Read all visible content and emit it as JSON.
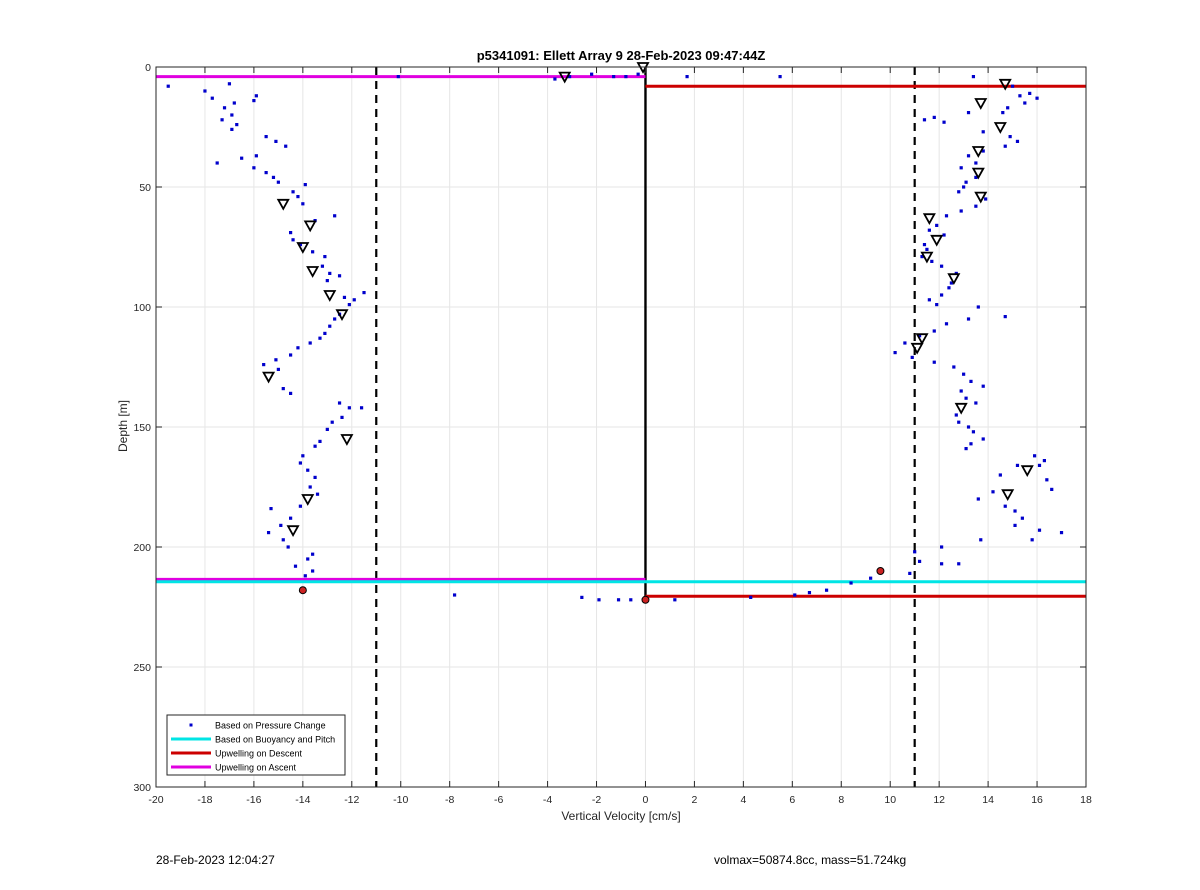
{
  "chart_data": {
    "type": "scatter",
    "title": "p5341091: Ellett Array 9 28-Feb-2023 09:47:44Z",
    "xlabel": "Vertical Velocity [cm/s]",
    "ylabel": "Depth [m]",
    "xlim": [
      -20,
      18
    ],
    "ylim": [
      0,
      300
    ],
    "y_reversed": true,
    "grid": true,
    "x_ticks": [
      -20,
      -18,
      -16,
      -14,
      -12,
      -10,
      -8,
      -6,
      -4,
      -2,
      0,
      2,
      4,
      6,
      8,
      10,
      12,
      14,
      16,
      18
    ],
    "y_ticks": [
      0,
      50,
      100,
      150,
      200,
      250,
      300
    ],
    "legend_position": "bottom-left",
    "legend": [
      {
        "label": "Based on Pressure Change",
        "color": "#0000cc",
        "kind": "marker"
      },
      {
        "label": "Based on Buoyancy and Pitch",
        "color": "#00e5e5",
        "kind": "line"
      },
      {
        "label": "Upwelling on Descent",
        "color": "#cc0000",
        "kind": "line"
      },
      {
        "label": "Upwelling on Ascent",
        "color": "#e000e0",
        "kind": "line"
      }
    ],
    "threshold_lines": [
      -11,
      11
    ],
    "zero_line_depth": [
      0,
      222
    ],
    "segments": [
      {
        "series": "Upwelling on Ascent",
        "color": "#e000e0",
        "x": [
          -20,
          0
        ],
        "depth": [
          4,
          4
        ]
      },
      {
        "series": "Upwelling on Ascent",
        "color": "#e000e0",
        "x": [
          -20,
          0
        ],
        "depth": [
          213.5,
          213.5
        ]
      },
      {
        "series": "Based on Buoyancy and Pitch",
        "color": "#00e5e5",
        "x": [
          -20,
          0
        ],
        "depth": [
          214.5,
          214.5
        ]
      },
      {
        "series": "Based on Buoyancy and Pitch",
        "color": "#00e5e5",
        "x": [
          0,
          18
        ],
        "depth": [
          214.5,
          214.5
        ]
      },
      {
        "series": "Upwelling on Descent",
        "color": "#cc0000",
        "x": [
          0,
          18
        ],
        "depth": [
          8,
          8
        ]
      },
      {
        "series": "Upwelling on Descent",
        "color": "#cc0000",
        "x": [
          0,
          18
        ],
        "depth": [
          220.5,
          220.5
        ]
      }
    ],
    "series": [
      {
        "name": "Based on Pressure Change",
        "color": "#0000cc",
        "points": [
          [
            -19.5,
            8
          ],
          [
            -18,
            10
          ],
          [
            -17.7,
            13
          ],
          [
            -17,
            7
          ],
          [
            -16.8,
            15
          ],
          [
            -17.2,
            17
          ],
          [
            -16.9,
            20
          ],
          [
            -17.3,
            22
          ],
          [
            -16.7,
            24
          ],
          [
            -16.9,
            26
          ],
          [
            -15.9,
            12
          ],
          [
            -16,
            14
          ],
          [
            -15.5,
            29
          ],
          [
            -15.1,
            31
          ],
          [
            -14.7,
            33
          ],
          [
            -15.9,
            37
          ],
          [
            -16.5,
            38
          ],
          [
            -17.5,
            40
          ],
          [
            -16,
            42
          ],
          [
            -15.5,
            44
          ],
          [
            -15.2,
            46
          ],
          [
            -15,
            48
          ],
          [
            -14.4,
            52
          ],
          [
            -13.9,
            49
          ],
          [
            -14.2,
            54
          ],
          [
            -14,
            57
          ],
          [
            -12.7,
            62
          ],
          [
            -13.5,
            64
          ],
          [
            -14.5,
            69
          ],
          [
            -14.4,
            72
          ],
          [
            -14.1,
            74
          ],
          [
            -13.6,
            77
          ],
          [
            -13.1,
            79
          ],
          [
            -13.2,
            83
          ],
          [
            -12.9,
            86
          ],
          [
            -12.5,
            87
          ],
          [
            -13,
            89
          ],
          [
            -12.3,
            96
          ],
          [
            -11.9,
            97
          ],
          [
            -11.5,
            94
          ],
          [
            -12.1,
            99
          ],
          [
            -12.5,
            103
          ],
          [
            -12.7,
            105
          ],
          [
            -12.9,
            108
          ],
          [
            -13.1,
            111
          ],
          [
            -13.3,
            113
          ],
          [
            -13.7,
            115
          ],
          [
            -14.2,
            117
          ],
          [
            -14.5,
            120
          ],
          [
            -15.1,
            122
          ],
          [
            -15.6,
            124
          ],
          [
            -15,
            126
          ],
          [
            -14.8,
            134
          ],
          [
            -14.5,
            136
          ],
          [
            -12.5,
            140
          ],
          [
            -12.1,
            142
          ],
          [
            -11.6,
            142
          ],
          [
            -12.4,
            146
          ],
          [
            -12.8,
            148
          ],
          [
            -13,
            151
          ],
          [
            -13.3,
            156
          ],
          [
            -13.5,
            158
          ],
          [
            -14,
            162
          ],
          [
            -14.1,
            165
          ],
          [
            -13.8,
            168
          ],
          [
            -13.5,
            171
          ],
          [
            -13.7,
            175
          ],
          [
            -13.4,
            178
          ],
          [
            -14.1,
            183
          ],
          [
            -15.3,
            184
          ],
          [
            -14.5,
            188
          ],
          [
            -14.9,
            191
          ],
          [
            -15.4,
            194
          ],
          [
            -14.8,
            197
          ],
          [
            -14.6,
            200
          ],
          [
            -13.8,
            205
          ],
          [
            -13.6,
            203
          ],
          [
            -14.3,
            208
          ],
          [
            -13.9,
            212
          ],
          [
            -13.6,
            210
          ],
          [
            -10.1,
            4
          ],
          [
            -3.7,
            5
          ],
          [
            -3.1,
            4
          ],
          [
            -2.2,
            3
          ],
          [
            -1.3,
            4
          ],
          [
            -0.8,
            4
          ],
          [
            -0.3,
            3
          ],
          [
            1.7,
            4
          ],
          [
            5.5,
            4
          ],
          [
            -7.8,
            220
          ],
          [
            -2.6,
            221
          ],
          [
            -1.9,
            222
          ],
          [
            -1.1,
            222
          ],
          [
            -0.6,
            222
          ],
          [
            1.2,
            222
          ],
          [
            4.3,
            221
          ],
          [
            6.1,
            220
          ],
          [
            6.7,
            219
          ],
          [
            7.4,
            218
          ],
          [
            8.4,
            215
          ],
          [
            9.2,
            213
          ],
          [
            10.8,
            211
          ],
          [
            13.4,
            4
          ],
          [
            15,
            8
          ],
          [
            15.7,
            11
          ],
          [
            16,
            13
          ],
          [
            15.3,
            12
          ],
          [
            15.5,
            15
          ],
          [
            14.8,
            17
          ],
          [
            14.6,
            19
          ],
          [
            13.2,
            19
          ],
          [
            11.8,
            21
          ],
          [
            11.4,
            22
          ],
          [
            12.2,
            23
          ],
          [
            13.8,
            27
          ],
          [
            14.9,
            29
          ],
          [
            15.2,
            31
          ],
          [
            14.7,
            33
          ],
          [
            13.8,
            35
          ],
          [
            13.2,
            37
          ],
          [
            13.5,
            40
          ],
          [
            12.9,
            42
          ],
          [
            13.5,
            46
          ],
          [
            13.1,
            48
          ],
          [
            13,
            50
          ],
          [
            12.8,
            52
          ],
          [
            13.9,
            55
          ],
          [
            13.5,
            58
          ],
          [
            12.9,
            60
          ],
          [
            12.3,
            62
          ],
          [
            11.9,
            66
          ],
          [
            11.6,
            68
          ],
          [
            12.2,
            70
          ],
          [
            11.4,
            74
          ],
          [
            11.5,
            76
          ],
          [
            11.3,
            79
          ],
          [
            11.7,
            81
          ],
          [
            12.1,
            83
          ],
          [
            12.7,
            86
          ],
          [
            12.5,
            90
          ],
          [
            12.4,
            92
          ],
          [
            12.1,
            95
          ],
          [
            11.6,
            97
          ],
          [
            11.9,
            99
          ],
          [
            13.6,
            100
          ],
          [
            14.7,
            104
          ],
          [
            13.2,
            105
          ],
          [
            12.3,
            107
          ],
          [
            11.8,
            110
          ],
          [
            11.2,
            112
          ],
          [
            10.6,
            115
          ],
          [
            10.2,
            119
          ],
          [
            10.9,
            121
          ],
          [
            11.8,
            123
          ],
          [
            12.6,
            125
          ],
          [
            13,
            128
          ],
          [
            13.3,
            131
          ],
          [
            13.8,
            133
          ],
          [
            12.9,
            135
          ],
          [
            13.1,
            138
          ],
          [
            13.5,
            140
          ],
          [
            12.7,
            145
          ],
          [
            12.8,
            148
          ],
          [
            13.2,
            150
          ],
          [
            13.4,
            152
          ],
          [
            13.8,
            155
          ],
          [
            13.3,
            157
          ],
          [
            13.1,
            159
          ],
          [
            15.9,
            162
          ],
          [
            16.3,
            164
          ],
          [
            16.1,
            166
          ],
          [
            15.2,
            166
          ],
          [
            14.5,
            170
          ],
          [
            16.4,
            172
          ],
          [
            16.6,
            176
          ],
          [
            14.2,
            177
          ],
          [
            13.6,
            180
          ],
          [
            14.7,
            183
          ],
          [
            15.1,
            185
          ],
          [
            15.4,
            188
          ],
          [
            15.1,
            191
          ],
          [
            16.1,
            193
          ],
          [
            17,
            194
          ],
          [
            15.8,
            197
          ],
          [
            13.7,
            197
          ],
          [
            12.1,
            200
          ],
          [
            11,
            202
          ],
          [
            11.2,
            206
          ],
          [
            12.1,
            207
          ],
          [
            12.8,
            207
          ]
        ]
      }
    ],
    "triangles_down": [
      [
        -0.1,
        0
      ],
      [
        -3.3,
        4
      ],
      [
        14.7,
        7
      ],
      [
        13.7,
        15
      ],
      [
        14.5,
        25
      ],
      [
        13.6,
        35
      ],
      [
        13.6,
        44
      ],
      [
        13.7,
        54
      ],
      [
        11.6,
        63
      ],
      [
        11.9,
        72
      ],
      [
        11.5,
        79
      ],
      [
        12.6,
        88
      ],
      [
        11.3,
        113
      ],
      [
        11.1,
        117
      ],
      [
        12.9,
        142
      ],
      [
        15.6,
        168
      ],
      [
        14.8,
        178
      ],
      [
        -14.8,
        57
      ],
      [
        -13.7,
        66
      ],
      [
        -14,
        75
      ],
      [
        -13.6,
        85
      ],
      [
        -12.9,
        95
      ],
      [
        -12.4,
        103
      ],
      [
        -15.4,
        129
      ],
      [
        -12.2,
        155
      ],
      [
        -13.8,
        180
      ],
      [
        -14.4,
        193
      ]
    ],
    "red_markers": [
      [
        -14,
        218
      ],
      [
        9.6,
        210
      ],
      [
        0,
        222
      ]
    ]
  },
  "footer": {
    "timestamp": "28-Feb-2023 12:04:27",
    "info": "volmax=50874.8cc, mass=51.724kg"
  }
}
